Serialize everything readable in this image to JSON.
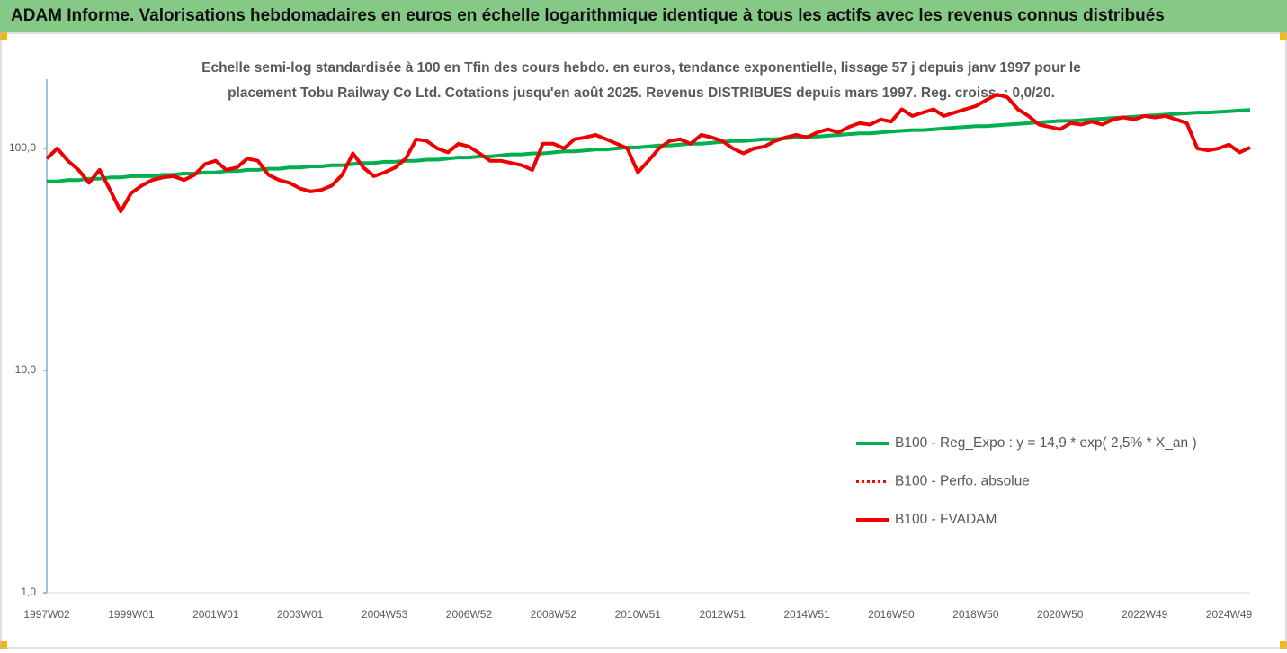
{
  "chart_data": {
    "type": "line",
    "title": "ADAM Informe. Valorisations hebdomadaires en euros en échelle logarithmique identique à tous les actifs avec les revenus connus distribués",
    "subtitle": [
      "Echelle semi-log standardisée à 100 en Tfin des cours hebdo. en euros, tendance exponentielle, lissage 57 j depuis janv 1997 pour le",
      "placement Tobu Railway Co Ltd. Cotations jusqu'en août 2025. Revenus DISTRIBUES depuis mars 1997. Reg. croiss. : 0,0/20."
    ],
    "categories": [
      "1997W02",
      null,
      null,
      null,
      null,
      null,
      null,
      null,
      "1999W01",
      null,
      null,
      null,
      null,
      null,
      null,
      null,
      "2001W01",
      null,
      null,
      null,
      null,
      null,
      null,
      null,
      "2003W01",
      null,
      null,
      null,
      null,
      null,
      null,
      null,
      "2004W53",
      null,
      null,
      null,
      null,
      null,
      null,
      null,
      "2006W52",
      null,
      null,
      null,
      null,
      null,
      null,
      null,
      "2008W52",
      null,
      null,
      null,
      null,
      null,
      null,
      null,
      "2010W51",
      null,
      null,
      null,
      null,
      null,
      null,
      null,
      "2012W51",
      null,
      null,
      null,
      null,
      null,
      null,
      null,
      "2014W51",
      null,
      null,
      null,
      null,
      null,
      null,
      null,
      "2016W50",
      null,
      null,
      null,
      null,
      null,
      null,
      null,
      "2018W50",
      null,
      null,
      null,
      null,
      null,
      null,
      null,
      "2020W50",
      null,
      null,
      null,
      null,
      null,
      null,
      null,
      "2022W49",
      null,
      null,
      null,
      null,
      null,
      null,
      null,
      "2024W49",
      null,
      null
    ],
    "log_scale": true,
    "ylim": [
      1,
      205
    ],
    "yticks": [
      {
        "value": 1,
        "label": "1,0"
      },
      {
        "value": 10,
        "label": "10,0"
      },
      {
        "value": 100,
        "label": "100,0"
      }
    ],
    "grid": false,
    "legend": "right",
    "series": [
      {
        "name": "B100 - Reg_Expo : y = 14,9 * exp( 2,5% *  X_an )",
        "color": "#00b050",
        "style": "solid",
        "values": [
          71,
          71,
          72,
          72,
          73,
          73,
          74,
          74,
          75,
          75,
          75,
          76,
          76,
          77,
          77,
          78,
          78,
          79,
          79,
          80,
          80,
          81,
          81,
          82,
          82,
          83,
          83,
          84,
          84,
          85,
          86,
          86,
          87,
          87,
          88,
          88,
          89,
          89,
          90,
          91,
          91,
          92,
          92,
          93,
          94,
          94,
          95,
          95,
          96,
          97,
          97,
          98,
          99,
          99,
          100,
          101,
          101,
          102,
          103,
          103,
          104,
          105,
          105,
          106,
          107,
          108,
          108,
          109,
          110,
          110,
          111,
          112,
          113,
          113,
          114,
          115,
          116,
          117,
          117,
          118,
          119,
          120,
          121,
          121,
          122,
          123,
          124,
          125,
          126,
          126,
          127,
          128,
          129,
          130,
          131,
          132,
          133,
          133,
          134,
          135,
          136,
          137,
          138,
          139,
          140,
          141,
          142,
          143,
          144,
          145,
          145,
          146,
          147,
          148,
          149
        ]
      },
      {
        "name": "B100 - Perfo. absolue",
        "color": "#ff0000",
        "style": "dotted",
        "values": [
          90,
          100,
          88,
          80,
          70,
          80,
          65,
          52,
          63,
          68,
          72,
          74,
          75,
          72,
          76,
          85,
          88,
          80,
          82,
          90,
          88,
          76,
          72,
          70,
          66,
          64,
          65,
          68,
          76,
          95,
          82,
          75,
          78,
          82,
          90,
          110,
          108,
          100,
          96,
          105,
          102,
          95,
          88,
          88,
          86,
          84,
          80,
          105,
          105,
          100,
          110,
          112,
          115,
          110,
          105,
          100,
          78,
          88,
          100,
          108,
          110,
          105,
          115,
          112,
          108,
          100,
          95,
          100,
          102,
          108,
          112,
          115,
          112,
          118,
          122,
          118,
          125,
          130,
          128,
          135,
          132,
          150,
          140,
          145,
          150,
          140,
          145,
          150,
          155,
          165,
          175,
          170,
          150,
          140,
          128,
          125,
          122,
          130,
          128,
          132,
          128,
          135,
          138,
          135,
          140,
          138,
          140,
          135,
          130,
          100,
          98,
          100,
          104,
          96,
          101
        ]
      },
      {
        "name": "B100 - FVADAM",
        "color": "#ee0000",
        "style": "solid",
        "values": [
          90,
          100,
          88,
          80,
          70,
          80,
          65,
          52,
          63,
          68,
          72,
          74,
          75,
          72,
          76,
          85,
          88,
          80,
          82,
          90,
          88,
          76,
          72,
          70,
          66,
          64,
          65,
          68,
          76,
          95,
          82,
          75,
          78,
          82,
          90,
          110,
          108,
          100,
          96,
          105,
          102,
          95,
          88,
          88,
          86,
          84,
          80,
          105,
          105,
          100,
          110,
          112,
          115,
          110,
          105,
          100,
          78,
          88,
          100,
          108,
          110,
          105,
          115,
          112,
          108,
          100,
          95,
          100,
          102,
          108,
          112,
          115,
          112,
          118,
          122,
          118,
          125,
          130,
          128,
          135,
          132,
          150,
          140,
          145,
          150,
          140,
          145,
          150,
          155,
          165,
          175,
          170,
          150,
          140,
          128,
          125,
          122,
          130,
          128,
          132,
          128,
          135,
          138,
          135,
          140,
          138,
          140,
          135,
          130,
          100,
          98,
          100,
          104,
          96,
          101
        ]
      }
    ]
  }
}
